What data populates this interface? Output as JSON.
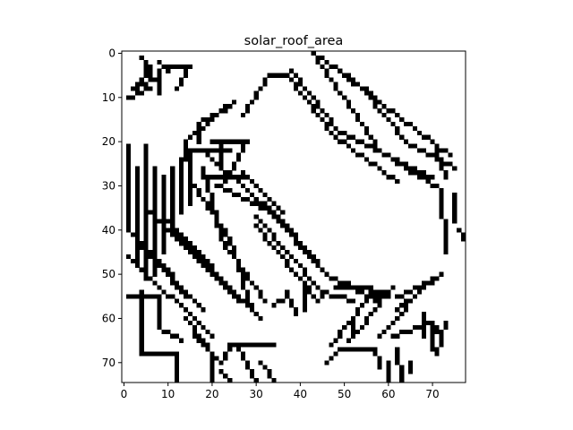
{
  "chart_data": {
    "type": "heatmap",
    "title": "solar_roof_area",
    "xlabel": "",
    "ylabel": "",
    "cols": 78,
    "rows": 75,
    "xlim": [
      -0.5,
      77.5
    ],
    "ylim": [
      74.5,
      -0.5
    ],
    "x_ticks": [
      0,
      10,
      20,
      30,
      40,
      50,
      60,
      70
    ],
    "y_ticks": [
      0,
      10,
      20,
      30,
      40,
      50,
      60,
      70
    ],
    "colors": {
      "off": "#ffffff",
      "on": "#000000"
    },
    "grid": false,
    "legend": "none",
    "note_encoding": "binary edge mask; black cells listed as [x, y] pairs",
    "segments": [
      [
        [
          4,
          1
        ],
        [
          6,
          5
        ]
      ],
      [
        [
          6,
          3
        ],
        [
          3,
          7
        ]
      ],
      [
        [
          8,
          2
        ],
        [
          10,
          4
        ]
      ],
      [
        [
          10,
          3
        ],
        [
          15,
          3
        ]
      ],
      [
        [
          15,
          3
        ],
        [
          12,
          8
        ]
      ],
      [
        [
          2,
          8
        ],
        [
          8,
          5
        ]
      ],
      [
        [
          1,
          10
        ],
        [
          6,
          8
        ]
      ],
      [
        [
          8,
          4
        ],
        [
          8,
          9
        ]
      ],
      [
        [
          14,
          20
        ],
        [
          25,
          11
        ]
      ],
      [
        [
          14,
          20
        ],
        [
          14,
          24
        ]
      ],
      [
        [
          17,
          16
        ],
        [
          25,
          11
        ]
      ],
      [
        [
          17,
          16
        ],
        [
          17,
          20
        ]
      ],
      [
        [
          15,
          22
        ],
        [
          24,
          22
        ]
      ],
      [
        [
          20,
          20
        ],
        [
          28,
          20
        ]
      ],
      [
        [
          18,
          28
        ],
        [
          28,
          28
        ]
      ],
      [
        [
          22,
          20
        ],
        [
          22,
          26
        ]
      ],
      [
        [
          28,
          20
        ],
        [
          23,
          29
        ]
      ],
      [
        [
          27,
          14
        ],
        [
          33,
          5
        ]
      ],
      [
        [
          33,
          5
        ],
        [
          37,
          5
        ]
      ],
      [
        [
          37,
          5
        ],
        [
          48,
          19
        ]
      ],
      [
        [
          48,
          19
        ],
        [
          62,
          29
        ]
      ],
      [
        [
          38,
          4
        ],
        [
          49,
          18
        ]
      ],
      [
        [
          49,
          18
        ],
        [
          70,
          28
        ]
      ],
      [
        [
          43,
          0
        ],
        [
          58,
          22
        ]
      ],
      [
        [
          58,
          22
        ],
        [
          72,
          31
        ]
      ],
      [
        [
          72,
          31
        ],
        [
          73,
          45
        ]
      ],
      [
        [
          45,
          1
        ],
        [
          55,
          9
        ]
      ],
      [
        [
          55,
          9
        ],
        [
          64,
          20
        ]
      ],
      [
        [
          64,
          20
        ],
        [
          75,
          26
        ]
      ],
      [
        [
          51,
          5
        ],
        [
          58,
          11
        ]
      ],
      [
        [
          58,
          11
        ],
        [
          74,
          23
        ]
      ],
      [
        [
          19,
          23
        ],
        [
          36,
          38
        ]
      ],
      [
        [
          36,
          38
        ],
        [
          47,
          51
        ]
      ],
      [
        [
          47,
          51
        ],
        [
          60,
          55
        ]
      ],
      [
        [
          21,
          30
        ],
        [
          32,
          35
        ]
      ],
      [
        [
          32,
          35
        ],
        [
          45,
          49
        ]
      ],
      [
        [
          30,
          37
        ],
        [
          45,
          54
        ]
      ],
      [
        [
          45,
          54
        ],
        [
          52,
          56
        ]
      ],
      [
        [
          30,
          39
        ],
        [
          44,
          56
        ]
      ],
      [
        [
          27,
          27
        ],
        [
          36,
          36
        ]
      ],
      [
        [
          18,
          26
        ],
        [
          22,
          42
        ]
      ],
      [
        [
          22,
          42
        ],
        [
          32,
          56
        ]
      ],
      [
        [
          16,
          30
        ],
        [
          24,
          42
        ]
      ],
      [
        [
          24,
          42
        ],
        [
          29,
          58
        ]
      ],
      [
        [
          11,
          26
        ],
        [
          11,
          40
        ]
      ],
      [
        [
          13,
          24
        ],
        [
          13,
          36
        ]
      ],
      [
        [
          15,
          22
        ],
        [
          15,
          34
        ]
      ],
      [
        [
          1,
          21
        ],
        [
          1,
          40
        ]
      ],
      [
        [
          3,
          26
        ],
        [
          3,
          47
        ]
      ],
      [
        [
          5,
          21
        ],
        [
          5,
          51
        ]
      ],
      [
        [
          7,
          26
        ],
        [
          7,
          50
        ]
      ],
      [
        [
          9,
          28
        ],
        [
          9,
          45
        ]
      ],
      [
        [
          1,
          40
        ],
        [
          14,
          55
        ]
      ],
      [
        [
          3,
          42
        ],
        [
          18,
          58
        ]
      ],
      [
        [
          1,
          46
        ],
        [
          20,
          64
        ]
      ],
      [
        [
          6,
          36
        ],
        [
          26,
          56
        ]
      ],
      [
        [
          9,
          37
        ],
        [
          30,
          59
        ]
      ],
      [
        [
          11,
          40
        ],
        [
          31,
          60
        ]
      ],
      [
        [
          4,
          54
        ],
        [
          4,
          68
        ]
      ],
      [
        [
          4,
          68
        ],
        [
          12,
          68
        ]
      ],
      [
        [
          12,
          68
        ],
        [
          12,
          75
        ]
      ],
      [
        [
          8,
          55
        ],
        [
          8,
          62
        ]
      ],
      [
        [
          8,
          62
        ],
        [
          13,
          65
        ]
      ],
      [
        [
          1,
          55
        ],
        [
          8,
          55
        ]
      ],
      [
        [
          14,
          60
        ],
        [
          20,
          68
        ]
      ],
      [
        [
          20,
          68
        ],
        [
          20,
          74
        ]
      ],
      [
        [
          16,
          64
        ],
        [
          22,
          70
        ]
      ],
      [
        [
          22,
          70
        ],
        [
          24,
          66
        ]
      ],
      [
        [
          24,
          66
        ],
        [
          28,
          66
        ]
      ],
      [
        [
          26,
          67
        ],
        [
          30,
          74
        ]
      ],
      [
        [
          29,
          66
        ],
        [
          34,
          66
        ]
      ],
      [
        [
          31,
          70
        ],
        [
          34,
          74
        ]
      ],
      [
        [
          22,
          72
        ],
        [
          24,
          74
        ]
      ],
      [
        [
          37,
          54
        ],
        [
          39,
          59
        ]
      ],
      [
        [
          34,
          57
        ],
        [
          37,
          55
        ]
      ],
      [
        [
          41,
          53
        ],
        [
          41,
          58
        ]
      ],
      [
        [
          44,
          56
        ],
        [
          46,
          54
        ]
      ],
      [
        [
          48,
          53
        ],
        [
          56,
          53
        ]
      ],
      [
        [
          50,
          52
        ],
        [
          58,
          56
        ]
      ],
      [
        [
          57,
          55
        ],
        [
          61,
          53
        ]
      ],
      [
        [
          55,
          56
        ],
        [
          47,
          66
        ]
      ],
      [
        [
          58,
          57
        ],
        [
          51,
          65
        ]
      ],
      [
        [
          62,
          55
        ],
        [
          70,
          51
        ]
      ],
      [
        [
          70,
          51
        ],
        [
          58,
          64
        ]
      ],
      [
        [
          52,
          60
        ],
        [
          52,
          64
        ]
      ],
      [
        [
          62,
          58
        ],
        [
          72,
          50
        ]
      ],
      [
        [
          46,
          70
        ],
        [
          49,
          67
        ]
      ],
      [
        [
          49,
          67
        ],
        [
          57,
          67
        ]
      ],
      [
        [
          57,
          67
        ],
        [
          58,
          71
        ]
      ],
      [
        [
          61,
          64
        ],
        [
          70,
          61
        ]
      ],
      [
        [
          70,
          61
        ],
        [
          70,
          67
        ]
      ],
      [
        [
          60,
          70
        ],
        [
          60,
          74
        ]
      ],
      [
        [
          62,
          67
        ],
        [
          63,
          74
        ]
      ],
      [
        [
          65,
          70
        ],
        [
          65,
          72
        ]
      ],
      [
        [
          68,
          59
        ],
        [
          68,
          64
        ]
      ],
      [
        [
          71,
          62
        ],
        [
          72,
          66
        ]
      ],
      [
        [
          73,
          61
        ],
        [
          71,
          68
        ]
      ],
      [
        [
          71,
          22
        ],
        [
          73,
          28
        ]
      ],
      [
        [
          75,
          32
        ],
        [
          75,
          38
        ]
      ],
      [
        [
          76,
          40
        ],
        [
          77,
          42
        ]
      ]
    ]
  }
}
